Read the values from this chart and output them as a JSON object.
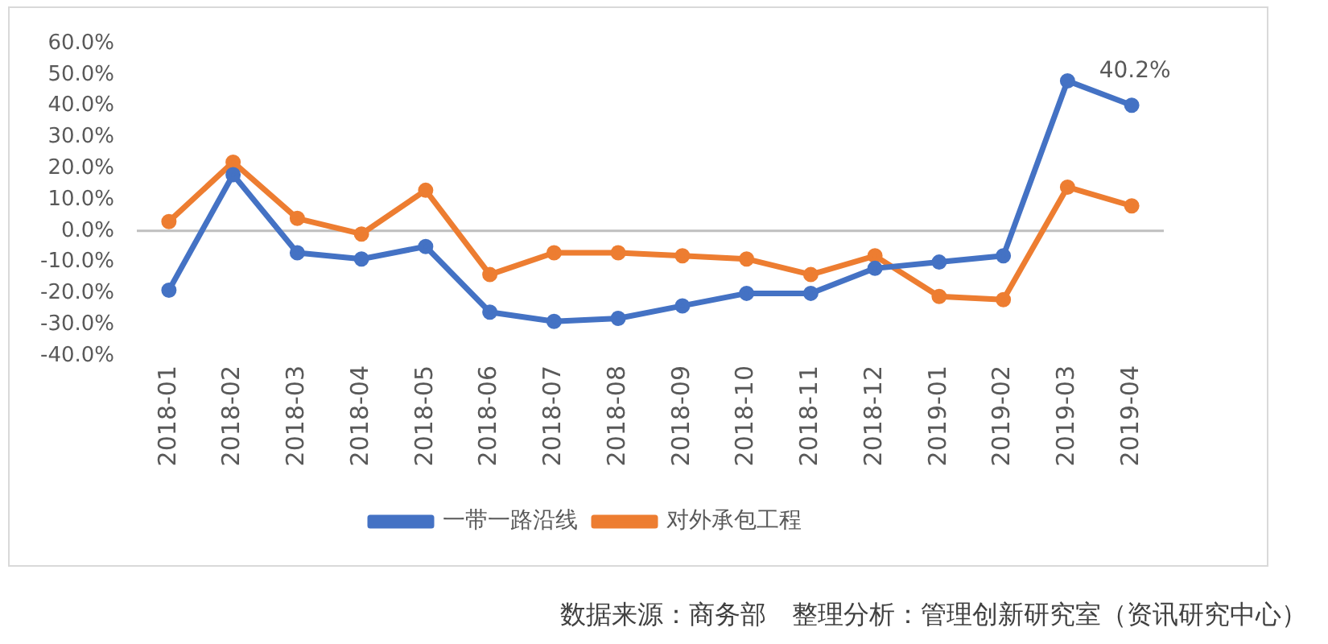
{
  "chart_data": {
    "type": "line",
    "categories": [
      "2018-01",
      "2018-02",
      "2018-03",
      "2018-04",
      "2018-05",
      "2018-06",
      "2018-07",
      "2018-08",
      "2018-09",
      "2018-10",
      "2018-11",
      "2018-12",
      "2019-01",
      "2019-02",
      "2019-03",
      "2019-04"
    ],
    "series": [
      {
        "name": "一带一路沿线",
        "color": "#4472c4",
        "values": [
          -19,
          18,
          -7,
          -9,
          -5,
          -26,
          -29,
          -28,
          -24,
          -20,
          -20,
          -12,
          -10,
          -8,
          48,
          40.2
        ],
        "value_labels": [
          null,
          null,
          null,
          null,
          null,
          null,
          null,
          null,
          null,
          null,
          null,
          null,
          null,
          null,
          null,
          "40.2%"
        ]
      },
      {
        "name": "对外承包工程",
        "color": "#ed7d31",
        "values": [
          3,
          22,
          4,
          -1,
          13,
          -14,
          -7,
          -7,
          -8,
          -9,
          -14,
          -8,
          -21,
          -22,
          14,
          8
        ]
      }
    ],
    "ylim": [
      -40,
      60
    ],
    "yticks": [
      {
        "value": -40,
        "label": "-40.0%"
      },
      {
        "value": -30,
        "label": "-30.0%"
      },
      {
        "value": -20,
        "label": "-20.0%"
      },
      {
        "value": -10,
        "label": "-10.0%"
      },
      {
        "value": 0,
        "label": "0.0%"
      },
      {
        "value": 10,
        "label": "10.0%"
      },
      {
        "value": 20,
        "label": "20.0%"
      },
      {
        "value": 30,
        "label": "30.0%"
      },
      {
        "value": 40,
        "label": "40.0%"
      },
      {
        "value": 50,
        "label": "50.0%"
      },
      {
        "value": 60,
        "label": "60.0%"
      }
    ],
    "ref_lines": [
      {
        "axis": "y",
        "value": 0,
        "color": "#bfbfbf"
      }
    ],
    "legend": "bottom",
    "marker": "circle",
    "line_style": "solid",
    "annotations": [
      "数据来源：商务部　整理分析：管理创新研究室（资讯研究中心）"
    ]
  }
}
